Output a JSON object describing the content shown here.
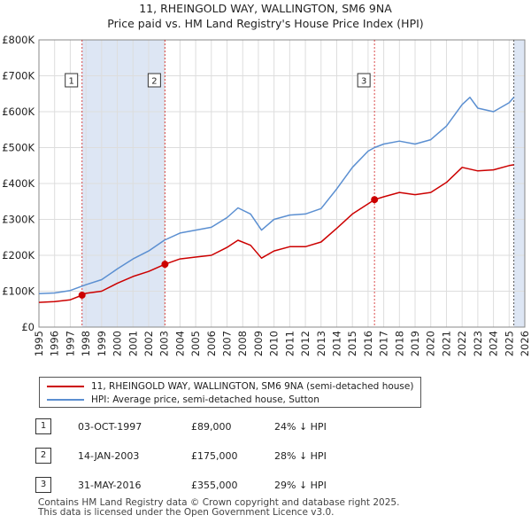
{
  "title_line1": "11, RHEINGOLD WAY, WALLINGTON, SM6 9NA",
  "title_line2": "Price paid vs. HM Land Registry's House Price Index (HPI)",
  "colors": {
    "property": "#cc0000",
    "hpi": "#5b8fd1",
    "shade": "#dde6f4"
  },
  "legend": {
    "property": "11, RHEINGOLD WAY, WALLINGTON, SM6 9NA (semi-detached house)",
    "hpi": "HPI: Average price, semi-detached house, Sutton"
  },
  "sales": [
    {
      "n": "1",
      "date": "03-OCT-1997",
      "price": "£89,000",
      "hpi": "24% ↓ HPI"
    },
    {
      "n": "2",
      "date": "14-JAN-2003",
      "price": "£175,000",
      "hpi": "28% ↓ HPI"
    },
    {
      "n": "3",
      "date": "31-MAY-2016",
      "price": "£355,000",
      "hpi": "29% ↓ HPI"
    }
  ],
  "footer_line1": "Contains HM Land Registry data © Crown copyright and database right 2025.",
  "footer_line2": "This data is licensed under the Open Government Licence v3.0.",
  "chart_data": {
    "type": "line",
    "xlim": [
      1995,
      2026
    ],
    "ylim": [
      0,
      800000
    ],
    "yticks": [
      "£0",
      "£100K",
      "£200K",
      "£300K",
      "£400K",
      "£500K",
      "£600K",
      "£700K",
      "£800K"
    ],
    "xticks": [
      "1995",
      "1996",
      "1997",
      "1998",
      "1999",
      "2000",
      "2001",
      "2002",
      "2003",
      "2004",
      "2005",
      "2006",
      "2007",
      "2008",
      "2009",
      "2010",
      "2011",
      "2012",
      "2013",
      "2014",
      "2015",
      "2016",
      "2017",
      "2018",
      "2019",
      "2020",
      "2021",
      "2022",
      "2023",
      "2024",
      "2025",
      "2026"
    ],
    "grid": true,
    "legend_position": "bottom",
    "shaded_periods": [
      [
        1997.75,
        2003.04
      ],
      [
        2016.41,
        2016.41
      ],
      [
        2025.3,
        2026
      ]
    ],
    "series": [
      {
        "name": "11, RHEINGOLD WAY, WALLINGTON, SM6 9NA (semi-detached house)",
        "x": [
          1995,
          1996,
          1997,
          1997.75,
          1998,
          1999,
          2000,
          2001,
          2002,
          2003.04,
          2004,
          2005,
          2006,
          2007,
          2007.7,
          2008.5,
          2009.2,
          2010,
          2011,
          2012,
          2013,
          2014,
          2015,
          2016.41,
          2017,
          2018,
          2019,
          2020,
          2021,
          2022,
          2023,
          2024,
          2025,
          2025.3
        ],
        "y": [
          69000,
          71000,
          76000,
          89000,
          94000,
          100000,
          122000,
          141000,
          155000,
          175000,
          190000,
          195000,
          200000,
          222000,
          242000,
          228000,
          192000,
          212000,
          224000,
          224000,
          237000,
          275000,
          315000,
          355000,
          363000,
          375000,
          369000,
          375000,
          403000,
          445000,
          435000,
          438000,
          450000,
          452000
        ]
      },
      {
        "name": "HPI: Average price, semi-detached house, Sutton",
        "x": [
          1995,
          1996,
          1997,
          1998,
          1999,
          2000,
          2001,
          2002,
          2003,
          2004,
          2005,
          2006,
          2007,
          2007.7,
          2008.5,
          2009.2,
          2010,
          2011,
          2012,
          2013,
          2014,
          2015,
          2016,
          2016.41,
          2017,
          2018,
          2019,
          2020,
          2021,
          2022,
          2022.5,
          2023,
          2024,
          2025,
          2025.3
        ],
        "y": [
          93000,
          95000,
          102000,
          118000,
          132000,
          162000,
          190000,
          212000,
          242000,
          262000,
          270000,
          278000,
          305000,
          332000,
          315000,
          270000,
          300000,
          312000,
          315000,
          330000,
          385000,
          445000,
          490000,
          500000,
          510000,
          518000,
          510000,
          522000,
          560000,
          620000,
          640000,
          610000,
          600000,
          625000,
          640000
        ]
      }
    ],
    "annotations": [
      {
        "label": "1",
        "x": 1997.75,
        "y": 89000
      },
      {
        "label": "2",
        "x": 2003.04,
        "y": 175000
      },
      {
        "label": "3",
        "x": 2016.41,
        "y": 355000
      }
    ]
  }
}
